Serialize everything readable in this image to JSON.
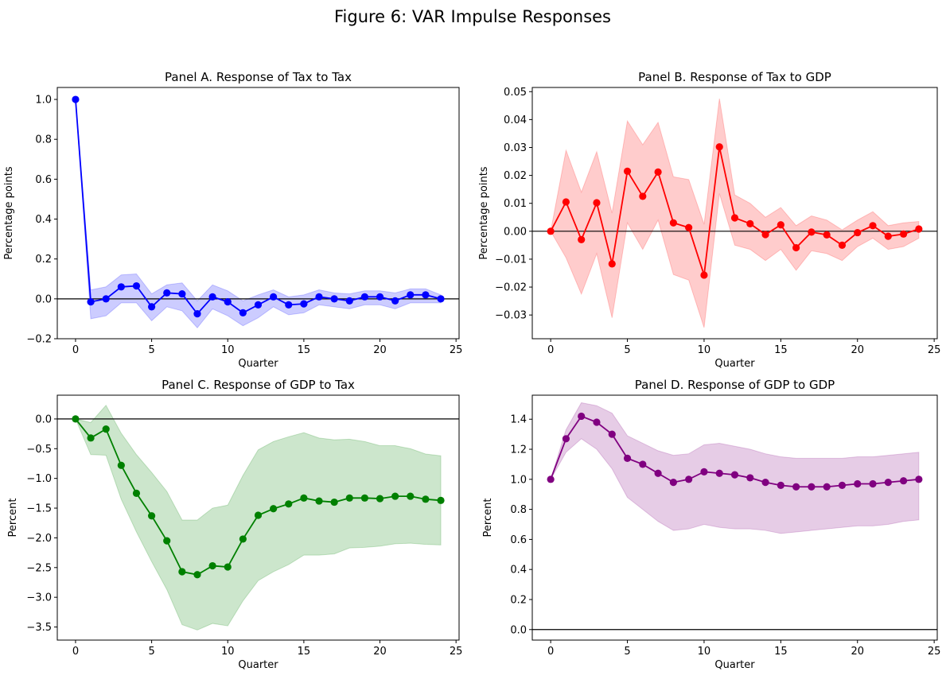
{
  "figure": {
    "title": "Figure 6: VAR Impulse Responses"
  },
  "chart_data": [
    {
      "type": "line",
      "title": "Panel A. Response of Tax to Tax",
      "xlabel": "Quarter",
      "ylabel": "Percentage points",
      "color": "#0000ff",
      "band_color": "#0000ff",
      "xlim": [
        -1.2,
        25.2
      ],
      "ylim": [
        -0.2,
        1.06
      ],
      "xticks": [
        0,
        5,
        10,
        15,
        20,
        25
      ],
      "yticks": [
        -0.2,
        0.0,
        0.2,
        0.4,
        0.6,
        0.8,
        1.0
      ],
      "ytick_labels": [
        "−0.2",
        "0.0",
        "0.2",
        "0.4",
        "0.6",
        "0.8",
        "1.0"
      ],
      "zero_line": true,
      "x": [
        0,
        1,
        2,
        3,
        4,
        5,
        6,
        7,
        8,
        9,
        10,
        11,
        12,
        13,
        14,
        15,
        16,
        17,
        18,
        19,
        20,
        21,
        22,
        23,
        24
      ],
      "y": [
        1.0,
        -0.015,
        0.0,
        0.06,
        0.065,
        -0.04,
        0.03,
        0.025,
        -0.075,
        0.01,
        -0.015,
        -0.07,
        -0.03,
        0.01,
        -0.03,
        -0.025,
        0.01,
        0.0,
        -0.01,
        0.01,
        0.01,
        -0.01,
        0.02,
        0.02,
        0.0
      ],
      "lower": [
        1.0,
        -0.1,
        -0.085,
        -0.02,
        -0.02,
        -0.11,
        -0.04,
        -0.06,
        -0.145,
        -0.05,
        -0.085,
        -0.135,
        -0.095,
        -0.04,
        -0.08,
        -0.07,
        -0.03,
        -0.04,
        -0.05,
        -0.03,
        -0.03,
        -0.05,
        -0.02,
        -0.02,
        -0.02
      ],
      "upper": [
        1.0,
        0.045,
        0.06,
        0.12,
        0.125,
        0.025,
        0.07,
        0.08,
        -0.01,
        0.07,
        0.04,
        -0.01,
        0.02,
        0.045,
        0.01,
        0.02,
        0.045,
        0.03,
        0.025,
        0.04,
        0.04,
        0.03,
        0.05,
        0.05,
        0.02
      ]
    },
    {
      "type": "line",
      "title": "Panel B. Response of Tax to GDP",
      "xlabel": "Quarter",
      "ylabel": "Percentage points",
      "color": "#ff0000",
      "band_color": "#ff0000",
      "xlim": [
        -1.2,
        25.2
      ],
      "ylim": [
        -0.0385,
        0.0515
      ],
      "xticks": [
        0,
        5,
        10,
        15,
        20,
        25
      ],
      "yticks": [
        -0.03,
        -0.02,
        -0.01,
        0.0,
        0.01,
        0.02,
        0.03,
        0.04,
        0.05
      ],
      "ytick_labels": [
        "−0.03",
        "−0.02",
        "−0.01",
        "0.00",
        "0.01",
        "0.02",
        "0.03",
        "0.04",
        "0.05"
      ],
      "zero_line": true,
      "x": [
        0,
        1,
        2,
        3,
        4,
        5,
        6,
        7,
        8,
        9,
        10,
        11,
        12,
        13,
        14,
        15,
        16,
        17,
        18,
        19,
        20,
        21,
        22,
        23,
        24
      ],
      "y": [
        0.0,
        0.0105,
        -0.003,
        0.0102,
        -0.0117,
        0.0215,
        0.0125,
        0.0212,
        0.003,
        0.0013,
        -0.0157,
        0.0302,
        0.0048,
        0.0027,
        -0.0012,
        0.0023,
        -0.0059,
        -0.0003,
        -0.0013,
        -0.005,
        -0.0005,
        0.002,
        -0.0018,
        -0.001,
        0.0008
      ],
      "lower": [
        0.0,
        -0.0095,
        -0.0225,
        -0.008,
        -0.031,
        0.003,
        -0.0065,
        0.004,
        -0.0155,
        -0.0175,
        -0.0345,
        0.0135,
        -0.005,
        -0.0065,
        -0.0105,
        -0.0065,
        -0.014,
        -0.007,
        -0.008,
        -0.0105,
        -0.0055,
        -0.0025,
        -0.0065,
        -0.0055,
        -0.0025
      ],
      "upper": [
        0.0,
        0.029,
        0.014,
        0.0285,
        0.0065,
        0.0395,
        0.031,
        0.039,
        0.0195,
        0.0185,
        0.0025,
        0.0475,
        0.013,
        0.01,
        0.005,
        0.0085,
        0.002,
        0.0055,
        0.004,
        0.0005,
        0.004,
        0.007,
        0.002,
        0.003,
        0.0035
      ]
    },
    {
      "type": "line",
      "title": "Panel C. Response of GDP to Tax",
      "xlabel": "Quarter",
      "ylabel": "Percent",
      "color": "#008000",
      "band_color": "#008000",
      "xlim": [
        -1.2,
        25.2
      ],
      "ylim": [
        -3.72,
        0.4
      ],
      "xticks": [
        0,
        5,
        10,
        15,
        20,
        25
      ],
      "yticks": [
        -3.5,
        -3.0,
        -2.5,
        -2.0,
        -1.5,
        -1.0,
        -0.5,
        0.0
      ],
      "ytick_labels": [
        "−3.5",
        "−3.0",
        "−2.5",
        "−2.0",
        "−1.5",
        "−1.0",
        "−0.5",
        "0.0"
      ],
      "zero_line": true,
      "x": [
        0,
        1,
        2,
        3,
        4,
        5,
        6,
        7,
        8,
        9,
        10,
        11,
        12,
        13,
        14,
        15,
        16,
        17,
        18,
        19,
        20,
        21,
        22,
        23,
        24
      ],
      "y": [
        0.0,
        -0.32,
        -0.17,
        -0.78,
        -1.25,
        -1.63,
        -2.05,
        -2.57,
        -2.62,
        -2.47,
        -2.49,
        -2.02,
        -1.62,
        -1.51,
        -1.43,
        -1.33,
        -1.38,
        -1.4,
        -1.33,
        -1.33,
        -1.34,
        -1.3,
        -1.3,
        -1.35,
        -1.37
      ],
      "lower": [
        0.0,
        -0.6,
        -0.61,
        -1.35,
        -1.9,
        -2.4,
        -2.87,
        -3.46,
        -3.55,
        -3.44,
        -3.48,
        -3.06,
        -2.72,
        -2.57,
        -2.45,
        -2.29,
        -2.29,
        -2.27,
        -2.17,
        -2.16,
        -2.14,
        -2.1,
        -2.09,
        -2.11,
        -2.12
      ],
      "upper": [
        0.0,
        -0.06,
        0.23,
        -0.24,
        -0.6,
        -0.9,
        -1.22,
        -1.7,
        -1.7,
        -1.5,
        -1.45,
        -0.95,
        -0.52,
        -0.38,
        -0.3,
        -0.23,
        -0.32,
        -0.35,
        -0.34,
        -0.38,
        -0.45,
        -0.45,
        -0.5,
        -0.59,
        -0.62
      ]
    },
    {
      "type": "line",
      "title": "Panel D. Response of GDP to GDP",
      "xlabel": "Quarter",
      "ylabel": "Percent",
      "color": "#800080",
      "band_color": "#800080",
      "xlim": [
        -1.2,
        25.2
      ],
      "ylim": [
        -0.07,
        1.56
      ],
      "xticks": [
        0,
        5,
        10,
        15,
        20,
        25
      ],
      "yticks": [
        0.0,
        0.2,
        0.4,
        0.6,
        0.8,
        1.0,
        1.2,
        1.4
      ],
      "ytick_labels": [
        "0.0",
        "0.2",
        "0.4",
        "0.6",
        "0.8",
        "1.0",
        "1.2",
        "1.4"
      ],
      "zero_line": true,
      "x": [
        0,
        1,
        2,
        3,
        4,
        5,
        6,
        7,
        8,
        9,
        10,
        11,
        12,
        13,
        14,
        15,
        16,
        17,
        18,
        19,
        20,
        21,
        22,
        23,
        24
      ],
      "y": [
        1.0,
        1.27,
        1.42,
        1.38,
        1.3,
        1.14,
        1.1,
        1.04,
        0.98,
        1.0,
        1.05,
        1.04,
        1.03,
        1.01,
        0.98,
        0.96,
        0.95,
        0.95,
        0.95,
        0.96,
        0.97,
        0.97,
        0.98,
        0.99,
        1.0
      ],
      "lower": [
        1.0,
        1.18,
        1.27,
        1.2,
        1.07,
        0.88,
        0.8,
        0.72,
        0.66,
        0.67,
        0.7,
        0.68,
        0.67,
        0.67,
        0.66,
        0.64,
        0.65,
        0.66,
        0.67,
        0.68,
        0.69,
        0.69,
        0.7,
        0.72,
        0.73
      ],
      "upper": [
        1.0,
        1.33,
        1.51,
        1.49,
        1.44,
        1.29,
        1.24,
        1.19,
        1.16,
        1.17,
        1.23,
        1.24,
        1.22,
        1.2,
        1.17,
        1.15,
        1.14,
        1.14,
        1.14,
        1.14,
        1.15,
        1.15,
        1.16,
        1.17,
        1.18
      ]
    }
  ]
}
